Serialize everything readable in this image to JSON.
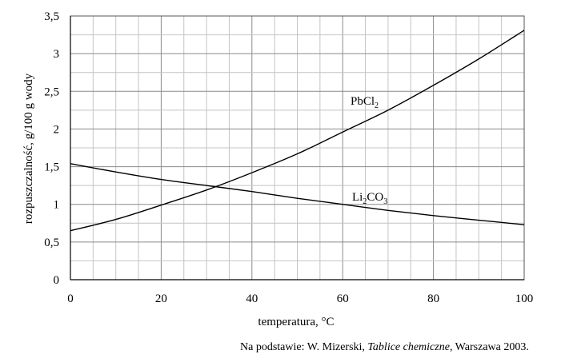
{
  "chart_data": {
    "type": "line",
    "xlabel": "temperatura, °C",
    "ylabel": "rozpuszczalność, g/100 g wody",
    "xlim": [
      0,
      100
    ],
    "ylim": [
      0,
      3.5
    ],
    "x_ticks": [
      "0",
      "20",
      "40",
      "60",
      "80",
      "100"
    ],
    "y_ticks": [
      "0",
      "0,5",
      "1",
      "1,5",
      "2",
      "2,5",
      "3",
      "3,5"
    ],
    "grid": true,
    "series": [
      {
        "name": "PbCl2",
        "label_base": "PbCl",
        "label_sub": "2",
        "label_tail": "",
        "x": [
          0,
          10,
          20,
          30,
          40,
          50,
          60,
          70,
          80,
          90,
          100
        ],
        "y": [
          0.65,
          0.8,
          0.99,
          1.19,
          1.42,
          1.67,
          1.96,
          2.25,
          2.58,
          2.93,
          3.31
        ]
      },
      {
        "name": "Li2CO3",
        "label_base": "Li",
        "label_sub": "2",
        "label_tail": "CO",
        "label_sub2": "3",
        "x": [
          0,
          10,
          20,
          30,
          40,
          50,
          60,
          70,
          80,
          90,
          100
        ],
        "y": [
          1.54,
          1.43,
          1.33,
          1.25,
          1.17,
          1.08,
          1.0,
          0.92,
          0.85,
          0.79,
          0.73
        ]
      }
    ]
  },
  "source": {
    "prefix": "Na podstawie: W. Mizerski, ",
    "title": "Tablice chemiczne",
    "suffix": ", Warszawa 2003."
  }
}
